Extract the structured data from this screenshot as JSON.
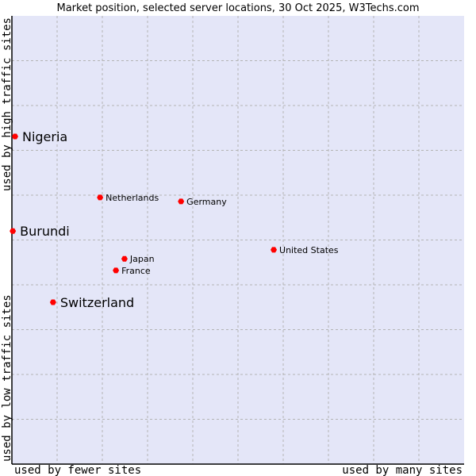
{
  "chart_data": {
    "type": "scatter",
    "title": "Market position, selected server locations, 30 Oct 2025, W3Techs.com",
    "xlabel_left": "used by fewer sites",
    "xlabel_right": "used by many sites",
    "ylabel_bottom": "used by low traffic sites",
    "ylabel_top": "used by high traffic sites",
    "xlim": [
      0,
      100
    ],
    "ylim": [
      0,
      100
    ],
    "grid": true,
    "colors": {
      "plot_bg": "#e4e6f8",
      "grid": "#b4b4b4",
      "point": "#ff0000"
    },
    "points": [
      {
        "label": "Nigeria",
        "x": 0.7,
        "y": 73.1,
        "highlight": true
      },
      {
        "label": "Burundi",
        "x": 0.2,
        "y": 52.0,
        "highlight": true
      },
      {
        "label": "Switzerland",
        "x": 9.1,
        "y": 36.1,
        "highlight": true
      },
      {
        "label": "Netherlands",
        "x": 19.5,
        "y": 59.5,
        "highlight": false
      },
      {
        "label": "Germany",
        "x": 37.4,
        "y": 58.6,
        "highlight": false
      },
      {
        "label": "Japan",
        "x": 24.9,
        "y": 45.8,
        "highlight": false
      },
      {
        "label": "France",
        "x": 23.0,
        "y": 43.2,
        "highlight": false
      },
      {
        "label": "United States",
        "x": 57.9,
        "y": 47.8,
        "highlight": false
      }
    ]
  }
}
